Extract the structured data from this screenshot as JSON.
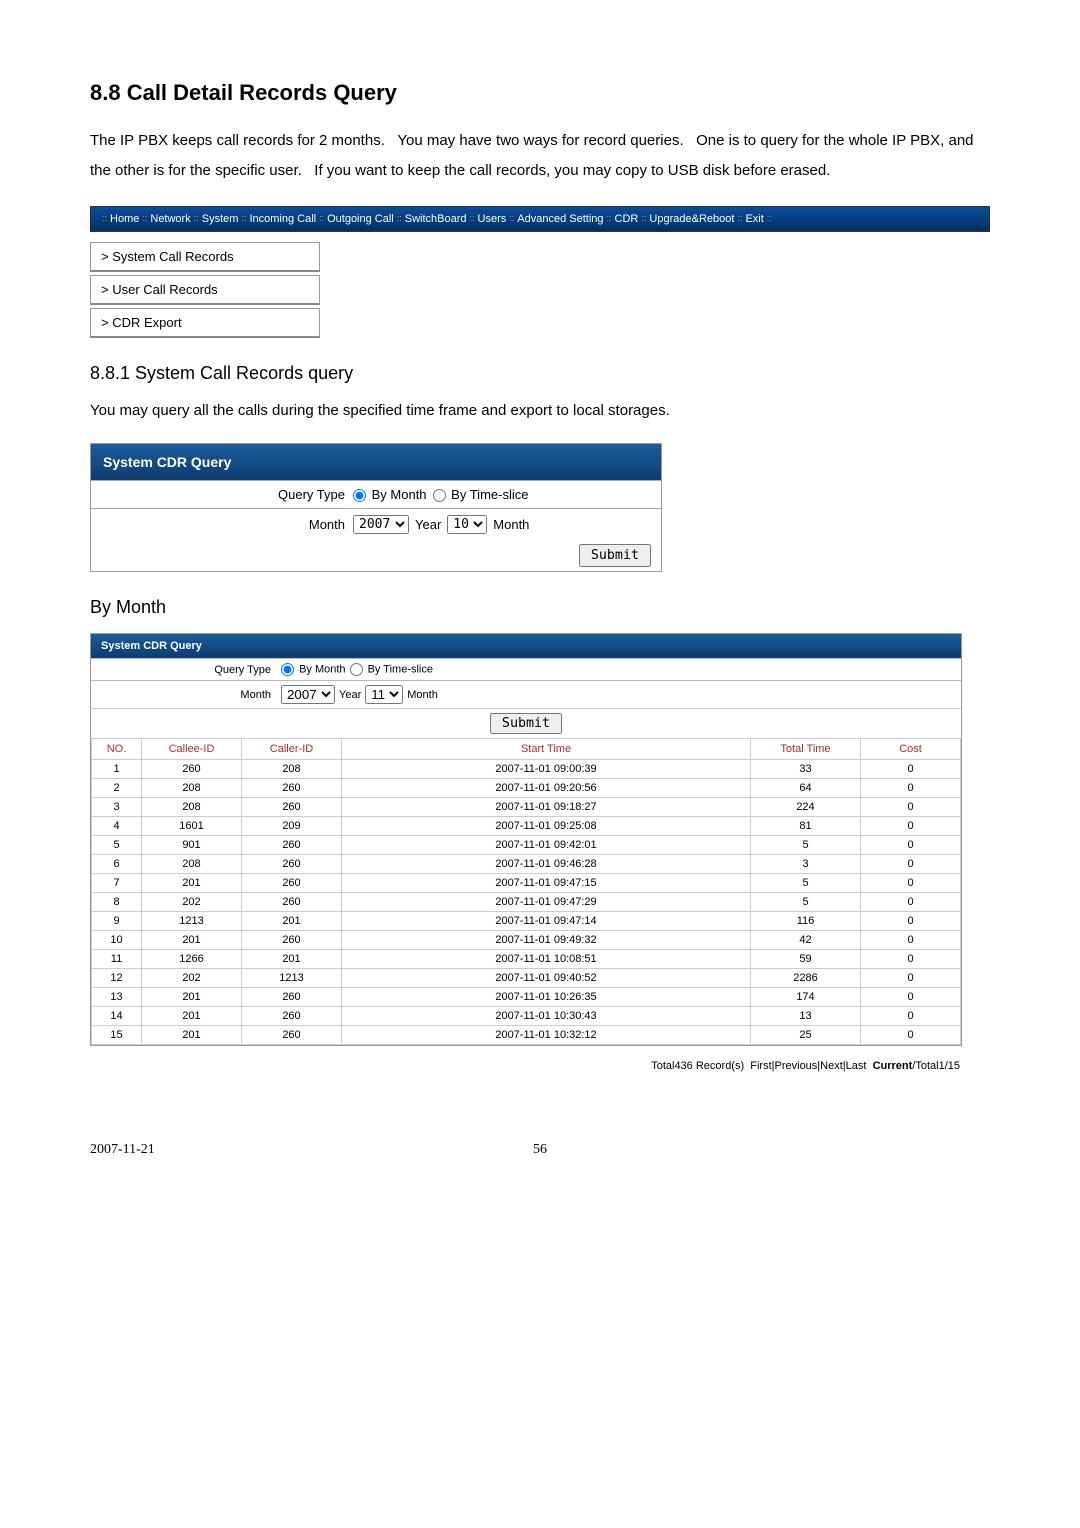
{
  "heading": "8.8 Call Detail Records Query",
  "intro": "The IP PBX keeps call records for 2 months.   You may have two ways for record queries.   One is to query for the whole IP PBX, and the other is for the specific user.   If you want to keep the call records, you may copy to USB disk before erased.",
  "nav": {
    "items": [
      "Home",
      "Network",
      "System",
      "Incoming Call",
      "Outgoing Call",
      "SwitchBoard",
      "Users",
      "Advanced Setting",
      "CDR",
      "Upgrade&Reboot",
      "Exit"
    ]
  },
  "sidemenu": {
    "items": [
      "> System Call Records",
      "> User Call Records",
      "> CDR Export"
    ]
  },
  "section1_title": "8.8.1 System Call Records query",
  "section1_desc": "You may query all the calls during the specified time frame and export to local storages.",
  "panel1": {
    "title": "System CDR Query",
    "querytype_label": "Query Type",
    "option_month": "By Month",
    "option_timeslice": "By Time-slice",
    "month_label": "Month",
    "year_value": "2007",
    "year_suffix": "Year",
    "month_value": "10",
    "month_suffix": "Month",
    "submit": "Submit"
  },
  "bymonth_label": "By Month",
  "panel2": {
    "title": "System CDR Query",
    "querytype_label": "Query Type",
    "option_month": "By Month",
    "option_timeslice": "By Time-slice",
    "month_label": "Month",
    "year_value": "2007",
    "year_suffix": "Year",
    "month_value": "11",
    "month_suffix": "Month",
    "submit": "Submit",
    "columns": [
      "NO.",
      "Callee-ID",
      "Caller-ID",
      "Start Time",
      "Total Time",
      "Cost"
    ],
    "rows": [
      [
        "1",
        "260",
        "208",
        "2007-11-01 09:00:39",
        "33",
        "0"
      ],
      [
        "2",
        "208",
        "260",
        "2007-11-01 09:20:56",
        "64",
        "0"
      ],
      [
        "3",
        "208",
        "260",
        "2007-11-01 09:18:27",
        "224",
        "0"
      ],
      [
        "4",
        "1601",
        "209",
        "2007-11-01 09:25:08",
        "81",
        "0"
      ],
      [
        "5",
        "901",
        "260",
        "2007-11-01 09:42:01",
        "5",
        "0"
      ],
      [
        "6",
        "208",
        "260",
        "2007-11-01 09:46:28",
        "3",
        "0"
      ],
      [
        "7",
        "201",
        "260",
        "2007-11-01 09:47:15",
        "5",
        "0"
      ],
      [
        "8",
        "202",
        "260",
        "2007-11-01 09:47:29",
        "5",
        "0"
      ],
      [
        "9",
        "1213",
        "201",
        "2007-11-01 09:47:14",
        "116",
        "0"
      ],
      [
        "10",
        "201",
        "260",
        "2007-11-01 09:49:32",
        "42",
        "0"
      ],
      [
        "11",
        "1266",
        "201",
        "2007-11-01 10:08:51",
        "59",
        "0"
      ],
      [
        "12",
        "202",
        "1213",
        "2007-11-01 09:40:52",
        "2286",
        "0"
      ],
      [
        "13",
        "201",
        "260",
        "2007-11-01 10:26:35",
        "174",
        "0"
      ],
      [
        "14",
        "201",
        "260",
        "2007-11-01 10:30:43",
        "13",
        "0"
      ],
      [
        "15",
        "201",
        "260",
        "2007-11-01 10:32:12",
        "25",
        "0"
      ]
    ]
  },
  "pagination": {
    "total_text": "Total436 Record(s)",
    "nav_text": "First|Previous|Next|Last",
    "current_label": "Current",
    "current_text": "/Total1/15"
  },
  "footer": {
    "date": "2007-11-21",
    "page": "56"
  }
}
